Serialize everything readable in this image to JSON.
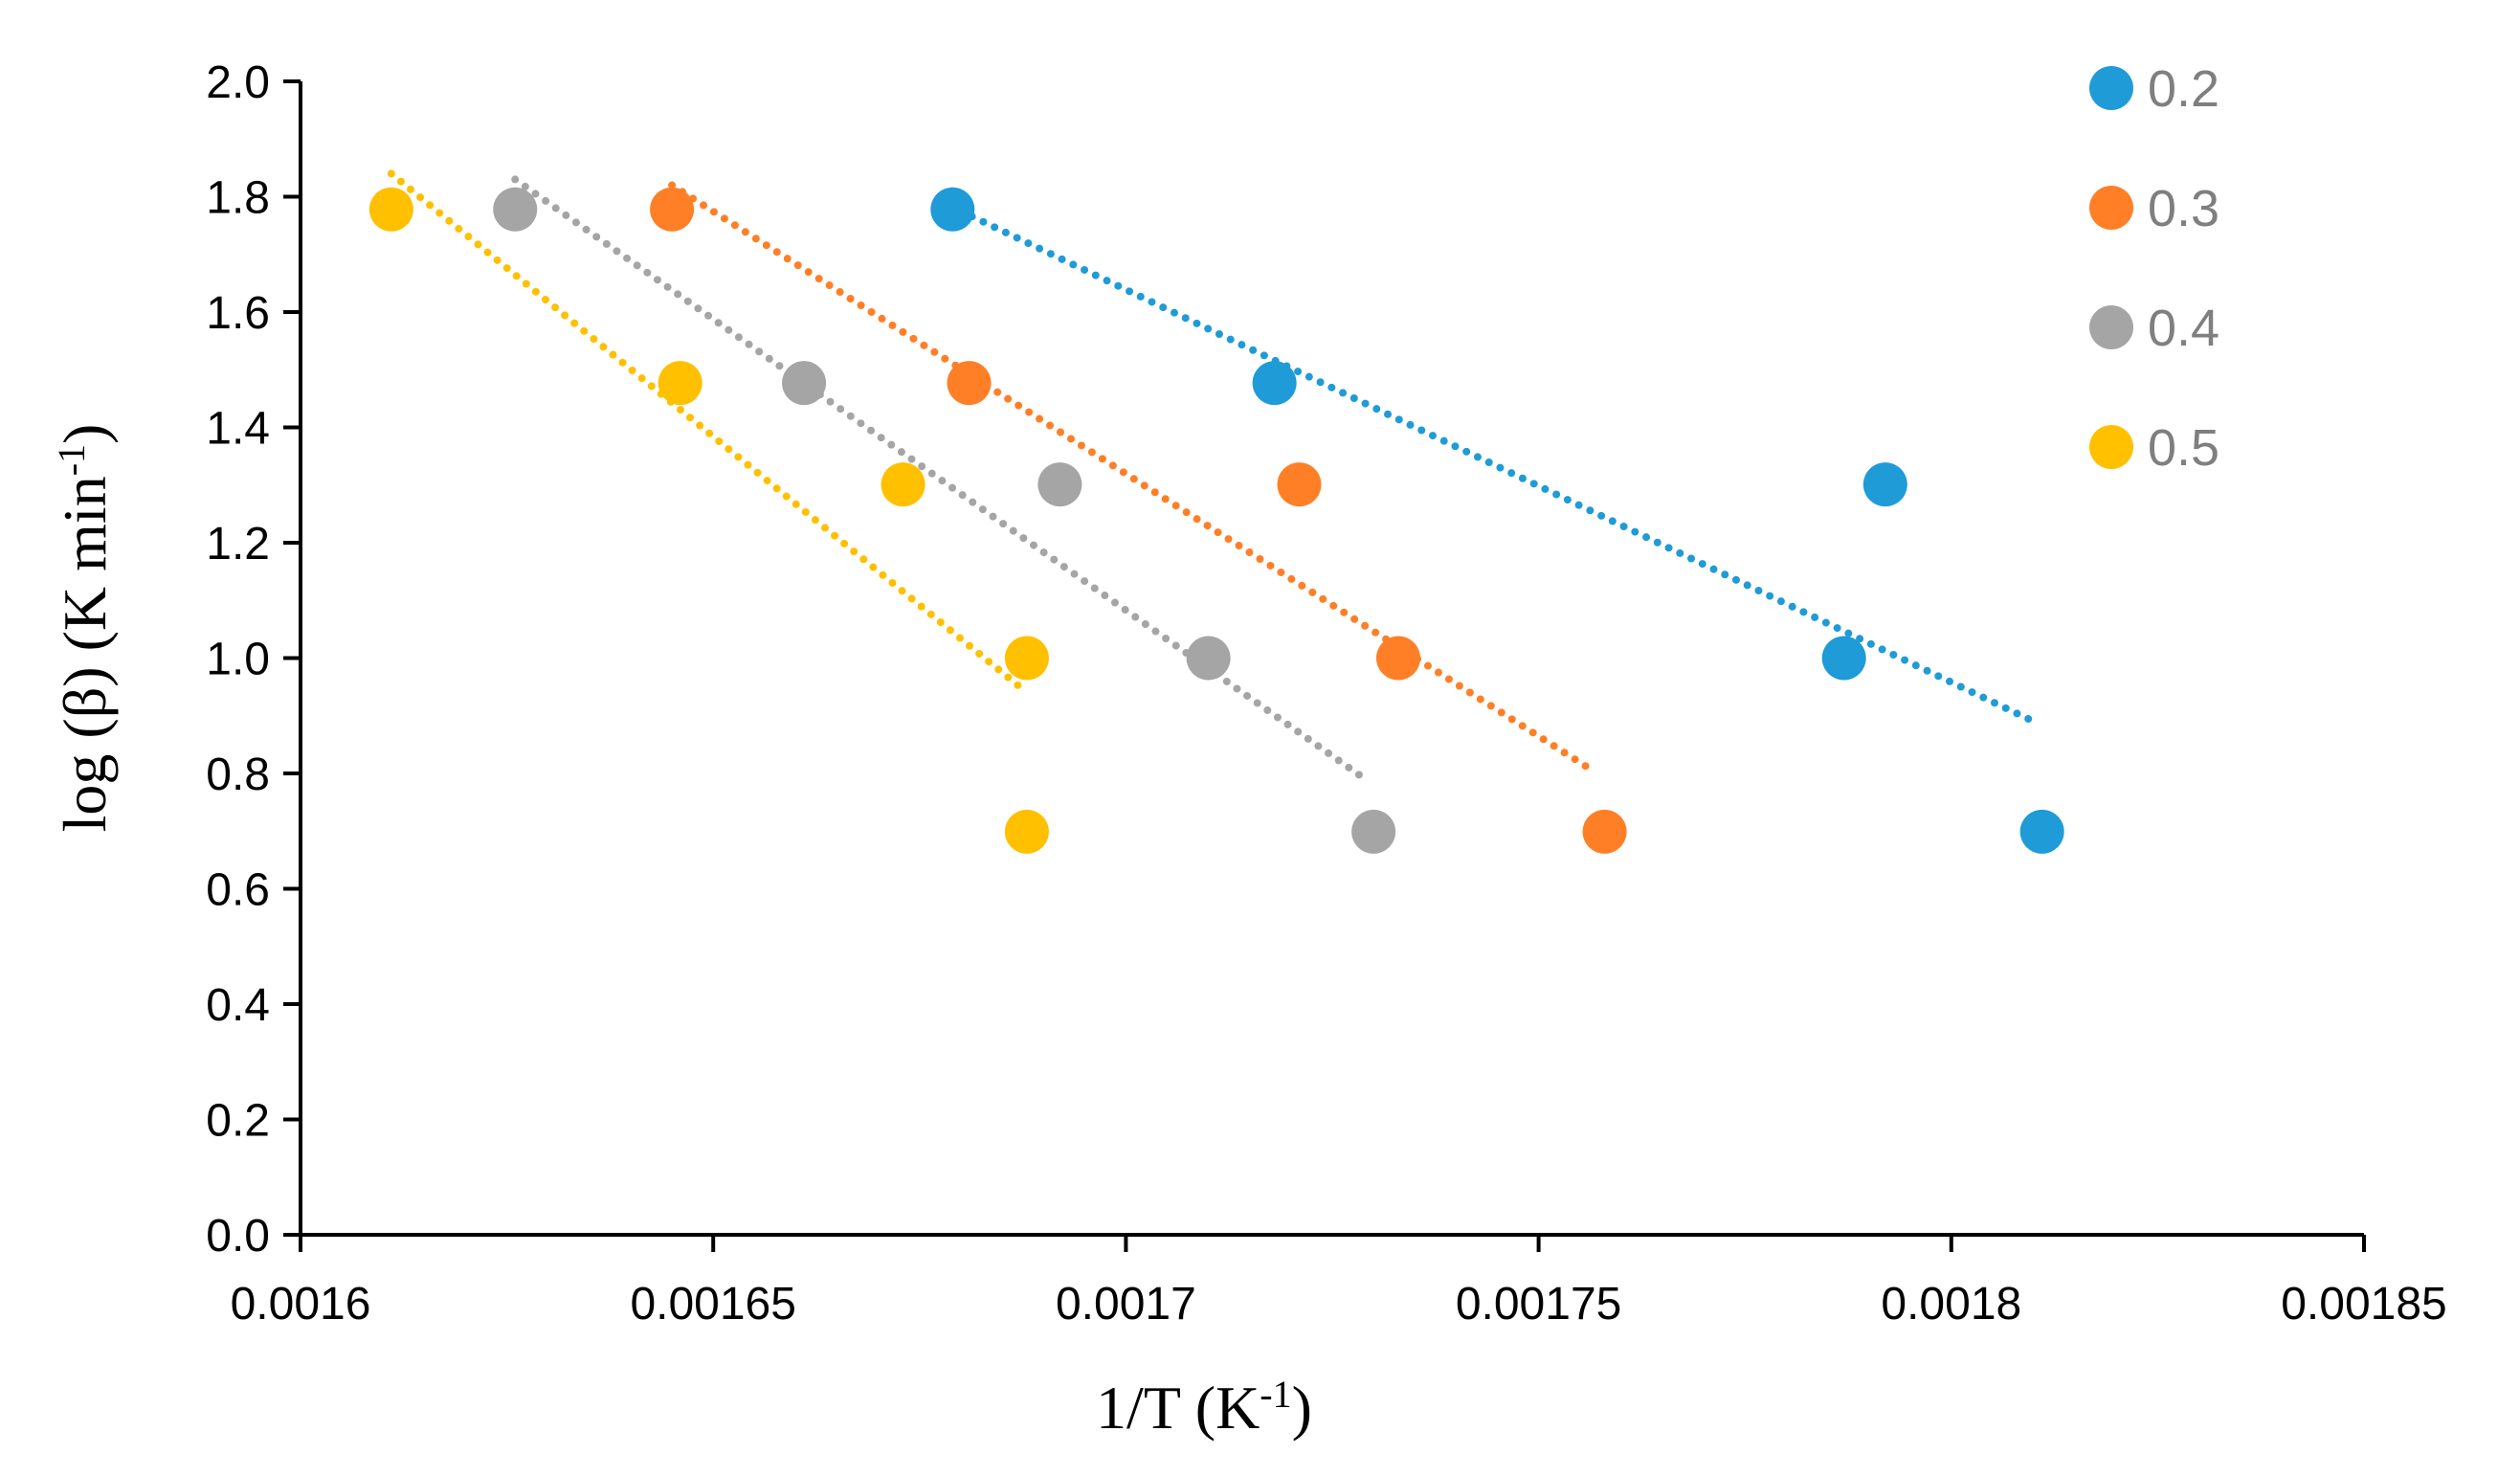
{
  "chart_data": {
    "type": "scatter",
    "title": "",
    "xlabel": {
      "main": "1/T (K",
      "sup": "-1",
      "end": ")"
    },
    "ylabel": {
      "main": "log (β) (K min",
      "sup": "-1",
      "end": ")"
    },
    "xlim": [
      0.0016,
      0.00185
    ],
    "ylim": [
      0.0,
      2.0
    ],
    "x_ticks": [
      {
        "value": 0.0016,
        "label": "0.0016"
      },
      {
        "value": 0.00165,
        "label": "0.00165"
      },
      {
        "value": 0.0017,
        "label": "0.0017"
      },
      {
        "value": 0.00175,
        "label": "0.00175"
      },
      {
        "value": 0.0018,
        "label": "0.0018"
      },
      {
        "value": 0.00185,
        "label": "0.00185"
      }
    ],
    "y_ticks": [
      {
        "value": 0.0,
        "label": "0.0"
      },
      {
        "value": 0.2,
        "label": "0.2"
      },
      {
        "value": 0.4,
        "label": "0.4"
      },
      {
        "value": 0.6,
        "label": "0.6"
      },
      {
        "value": 0.8,
        "label": "0.8"
      },
      {
        "value": 1.0,
        "label": "1.0"
      },
      {
        "value": 1.2,
        "label": "1.2"
      },
      {
        "value": 1.4,
        "label": "1.4"
      },
      {
        "value": 1.6,
        "label": "1.6"
      },
      {
        "value": 1.8,
        "label": "1.8"
      },
      {
        "value": 2.0,
        "label": "2.0"
      }
    ],
    "grid": false,
    "legend_position": "top-right",
    "series": [
      {
        "name": "0.2",
        "color": "#1f9bd7",
        "points": [
          {
            "x": 0.001679,
            "y": 1.778
          },
          {
            "x": 0.001718,
            "y": 1.477
          },
          {
            "x": 0.001792,
            "y": 1.301
          },
          {
            "x": 0.001787,
            "y": 1.0
          },
          {
            "x": 0.001811,
            "y": 0.699
          }
        ],
        "trendline": {
          "style": "dotted",
          "from": {
            "x": 0.00168,
            "y": 1.775
          },
          "to": {
            "x": 0.00181,
            "y": 0.89
          }
        }
      },
      {
        "name": "0.3",
        "color": "#ff7f27",
        "points": [
          {
            "x": 0.001645,
            "y": 1.778
          },
          {
            "x": 0.001681,
            "y": 1.477
          },
          {
            "x": 0.001721,
            "y": 1.301
          },
          {
            "x": 0.001733,
            "y": 1.0
          },
          {
            "x": 0.001758,
            "y": 0.699
          }
        ],
        "trendline": {
          "style": "dotted",
          "from": {
            "x": 0.001645,
            "y": 1.82
          },
          "to": {
            "x": 0.001756,
            "y": 0.81
          }
        }
      },
      {
        "name": "0.4",
        "color": "#a5a5a5",
        "points": [
          {
            "x": 0.001626,
            "y": 1.778
          },
          {
            "x": 0.001661,
            "y": 1.477
          },
          {
            "x": 0.001692,
            "y": 1.301
          },
          {
            "x": 0.00171,
            "y": 1.0
          },
          {
            "x": 0.00173,
            "y": 0.699
          }
        ],
        "trendline": {
          "style": "dotted",
          "from": {
            "x": 0.001626,
            "y": 1.83
          },
          "to": {
            "x": 0.001729,
            "y": 0.79
          }
        }
      },
      {
        "name": "0.5",
        "color": "#ffc000",
        "points": [
          {
            "x": 0.001611,
            "y": 1.778
          },
          {
            "x": 0.001646,
            "y": 1.477
          },
          {
            "x": 0.001673,
            "y": 1.301
          },
          {
            "x": 0.001688,
            "y": 1.0
          },
          {
            "x": 0.001688,
            "y": 0.699
          }
        ],
        "trendline": {
          "style": "dotted",
          "from": {
            "x": 0.001611,
            "y": 1.84
          },
          "to": {
            "x": 0.001688,
            "y": 0.94
          }
        }
      }
    ]
  }
}
